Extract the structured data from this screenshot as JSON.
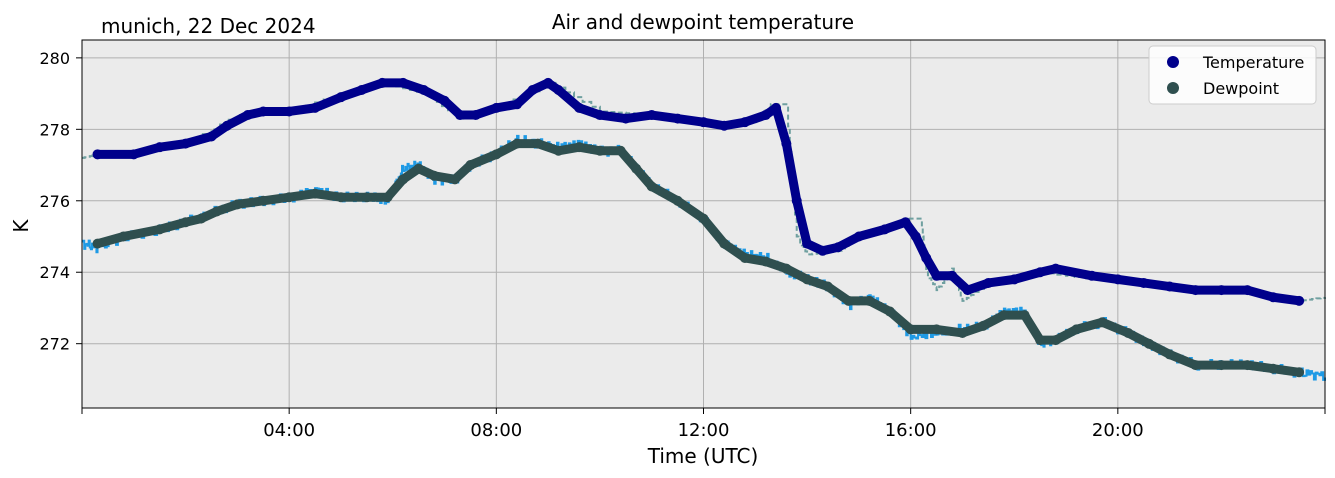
{
  "chart_data": {
    "type": "line",
    "title": "Air and dewpoint temperature",
    "subtitle": "munich, 22 Dec 2024",
    "xlabel": "Time (UTC)",
    "ylabel": "K",
    "x_unit": "hours UTC",
    "xlim": [
      0,
      24
    ],
    "ylim": [
      270.2,
      280.5
    ],
    "x_ticks": [
      0,
      4,
      8,
      12,
      16,
      20,
      24
    ],
    "x_tick_labels": [
      "",
      "04:00",
      "08:00",
      "12:00",
      "16:00",
      "20:00",
      ""
    ],
    "y_ticks": [
      272,
      274,
      276,
      278,
      280
    ],
    "y_tick_labels": [
      "272",
      "274",
      "276",
      "278",
      "280"
    ],
    "grid": true,
    "legend": "top-right",
    "background_color": "#ebebeb",
    "series": [
      {
        "name": "Temperature",
        "color": "#00008b",
        "style": "markers",
        "x": [
          0.3,
          1.0,
          1.5,
          2.0,
          2.5,
          2.8,
          3.2,
          3.5,
          4.0,
          4.5,
          5.0,
          5.4,
          5.8,
          6.2,
          6.6,
          7.0,
          7.3,
          7.6,
          8.0,
          8.4,
          8.7,
          9.0,
          9.2,
          9.6,
          10.0,
          10.5,
          11.0,
          11.5,
          12.0,
          12.4,
          12.8,
          13.2,
          13.4,
          13.6,
          13.8,
          14.0,
          14.3,
          14.6,
          15.0,
          15.5,
          15.9,
          16.1,
          16.3,
          16.5,
          16.8,
          17.1,
          17.5,
          18.0,
          18.5,
          18.8,
          19.5,
          20.0,
          20.5,
          21.0,
          21.5,
          22.0,
          22.5,
          23.0,
          23.5
        ],
        "values": [
          277.3,
          277.3,
          277.5,
          277.6,
          277.8,
          278.1,
          278.4,
          278.5,
          278.5,
          278.6,
          278.9,
          279.1,
          279.3,
          279.3,
          279.1,
          278.8,
          278.4,
          278.4,
          278.6,
          278.7,
          279.1,
          279.3,
          279.1,
          278.6,
          278.4,
          278.3,
          278.4,
          278.3,
          278.2,
          278.1,
          278.2,
          278.4,
          278.6,
          277.6,
          276.0,
          274.8,
          274.6,
          274.7,
          275.0,
          275.2,
          275.4,
          275.0,
          274.4,
          273.9,
          273.9,
          273.5,
          273.7,
          273.8,
          274.0,
          274.1,
          273.9,
          273.8,
          273.7,
          273.6,
          273.5,
          273.5,
          273.5,
          273.3,
          273.2
        ]
      },
      {
        "name": "Dewpoint",
        "color": "#2f4f4f",
        "style": "markers",
        "x": [
          0.3,
          0.8,
          1.5,
          2.0,
          2.3,
          2.6,
          3.0,
          3.5,
          4.0,
          4.5,
          5.0,
          5.5,
          5.9,
          6.2,
          6.5,
          6.8,
          7.2,
          7.5,
          8.0,
          8.4,
          8.8,
          9.2,
          9.6,
          10.0,
          10.4,
          10.7,
          11.0,
          11.5,
          12.0,
          12.4,
          12.8,
          13.2,
          13.6,
          14.0,
          14.4,
          14.8,
          15.2,
          15.6,
          16.0,
          16.5,
          17.0,
          17.4,
          17.8,
          18.2,
          18.5,
          18.8,
          19.2,
          19.7,
          20.2,
          20.6,
          21.0,
          21.5,
          22.0,
          22.5,
          23.0,
          23.5
        ],
        "values": [
          274.8,
          275.0,
          275.2,
          275.4,
          275.5,
          275.7,
          275.9,
          276.0,
          276.1,
          276.2,
          276.1,
          276.1,
          276.1,
          276.6,
          276.9,
          276.7,
          276.6,
          277.0,
          277.3,
          277.6,
          277.6,
          277.4,
          277.5,
          277.4,
          277.4,
          276.9,
          276.4,
          276.0,
          275.5,
          274.8,
          274.4,
          274.3,
          274.1,
          273.8,
          273.6,
          273.2,
          273.2,
          272.9,
          272.4,
          272.4,
          272.3,
          272.5,
          272.8,
          272.8,
          272.1,
          272.1,
          272.4,
          272.6,
          272.3,
          272.0,
          271.7,
          271.4,
          271.4,
          271.4,
          271.3,
          271.2
        ]
      }
    ],
    "secondary_series": [
      {
        "color": "#6fa0a0",
        "style": "dashed",
        "x": [
          0.0,
          0.3,
          1.0,
          2.0,
          3.0,
          4.0,
          5.0,
          5.8,
          6.6,
          7.3,
          8.0,
          9.0,
          10.0,
          11.0,
          12.0,
          13.0,
          13.3,
          13.6,
          13.8,
          14.0,
          14.6,
          15.0,
          15.9,
          16.2,
          16.3,
          16.5,
          16.8,
          17.0,
          17.5,
          18.5,
          19.5,
          20.5,
          21.5,
          22.5,
          23.5,
          24.0
        ],
        "values": [
          277.2,
          277.3,
          277.3,
          277.6,
          278.4,
          278.5,
          279.0,
          279.3,
          279.0,
          278.3,
          278.6,
          279.3,
          278.5,
          278.4,
          278.2,
          278.2,
          278.7,
          278.7,
          275.0,
          274.5,
          274.6,
          275.0,
          275.5,
          275.5,
          274.0,
          273.5,
          274.1,
          273.2,
          273.7,
          274.0,
          273.8,
          273.7,
          273.5,
          273.4,
          273.2,
          273.3
        ]
      },
      {
        "color": "#1e9ae5",
        "style": "noisy",
        "x": [
          0.0,
          0.3,
          0.8,
          1.5,
          2.0,
          2.6,
          3.0,
          3.5,
          4.0,
          4.5,
          5.0,
          5.5,
          5.9,
          6.2,
          6.5,
          6.8,
          7.2,
          7.5,
          8.0,
          8.4,
          8.8,
          9.2,
          9.6,
          10.0,
          10.4,
          10.7,
          11.0,
          11.5,
          12.0,
          12.4,
          12.8,
          13.2,
          13.6,
          14.0,
          14.4,
          14.8,
          15.2,
          15.6,
          16.0,
          16.5,
          17.0,
          17.4,
          17.8,
          18.2,
          18.5,
          18.8,
          19.2,
          19.7,
          20.2,
          20.6,
          21.0,
          21.5,
          22.0,
          22.5,
          23.0,
          23.5,
          24.0
        ],
        "values": [
          274.8,
          274.7,
          275.0,
          275.2,
          275.4,
          275.7,
          275.9,
          276.0,
          276.1,
          276.3,
          276.1,
          276.1,
          276.0,
          276.9,
          277.0,
          276.6,
          276.6,
          277.0,
          277.3,
          277.7,
          277.6,
          277.5,
          277.6,
          277.4,
          277.4,
          276.9,
          276.4,
          276.0,
          275.5,
          274.8,
          274.5,
          274.4,
          274.0,
          273.8,
          273.6,
          273.1,
          273.3,
          272.9,
          272.2,
          272.3,
          272.4,
          272.5,
          272.9,
          272.9,
          272.0,
          272.1,
          272.4,
          272.6,
          272.3,
          272.0,
          271.7,
          271.4,
          271.4,
          271.4,
          271.3,
          271.2,
          271.1
        ]
      }
    ]
  }
}
